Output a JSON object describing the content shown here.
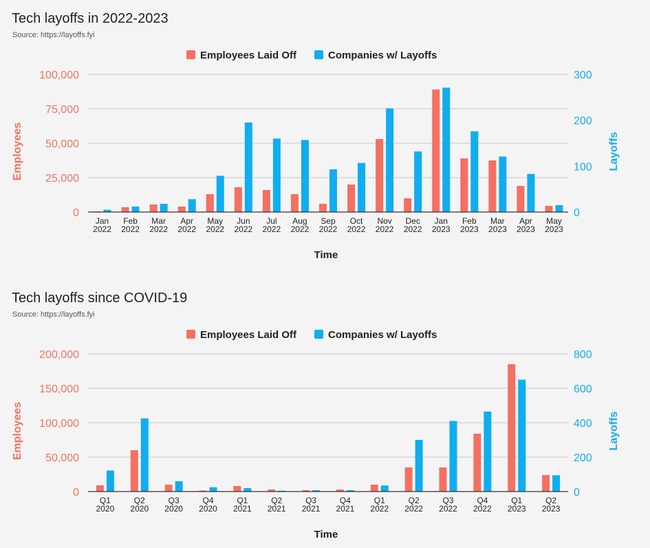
{
  "colors": {
    "employees": "#f47062",
    "companies": "#10adf0",
    "grid": "#c9c9c9",
    "axis": "#333333"
  },
  "chart_data": [
    {
      "type": "bar",
      "title": "Tech layoffs in 2022-2023",
      "subtitle": "Source: https://layoffs.fyi",
      "xlabel": "Time",
      "ylabel": "Employees",
      "y2label": "Layoffs",
      "legend_position": "top-center",
      "grid": true,
      "categories": [
        [
          "Jan",
          "2022"
        ],
        [
          "Feb",
          "2022"
        ],
        [
          "Mar",
          "2022"
        ],
        [
          "Apr",
          "2022"
        ],
        [
          "May",
          "2022"
        ],
        [
          "Jun",
          "2022"
        ],
        [
          "Jul",
          "2022"
        ],
        [
          "Aug",
          "2022"
        ],
        [
          "Sep",
          "2022"
        ],
        [
          "Oct",
          "2022"
        ],
        [
          "Nov",
          "2022"
        ],
        [
          "Dec",
          "2022"
        ],
        [
          "Jan",
          "2023"
        ],
        [
          "Feb",
          "2023"
        ],
        [
          "Mar",
          "2023"
        ],
        [
          "Apr",
          "2023"
        ],
        [
          "May",
          "2023"
        ]
      ],
      "ylim": [
        0,
        100000
      ],
      "y2lim": [
        0,
        300
      ],
      "yticks": [
        "0",
        "25,000",
        "50,000",
        "75,000",
        "100,000"
      ],
      "y2ticks": [
        "0",
        "100",
        "200",
        "300"
      ],
      "series": [
        {
          "name": "Employees Laid Off",
          "axis": "left",
          "values": [
            500,
            3500,
            5500,
            4000,
            13000,
            18000,
            16000,
            13000,
            6000,
            20000,
            53000,
            10000,
            89000,
            39000,
            37500,
            19000,
            4500
          ]
        },
        {
          "name": "Companies w/ Layoffs",
          "axis": "right",
          "values": [
            5,
            12,
            18,
            28,
            79,
            195,
            160,
            157,
            93,
            107,
            226,
            132,
            271,
            176,
            121,
            83,
            15
          ]
        }
      ]
    },
    {
      "type": "bar",
      "title": "Tech layoffs since COVID-19",
      "subtitle": "Source: https://layoffs.fyi",
      "xlabel": "Time",
      "ylabel": "Employees",
      "y2label": "Layoffs",
      "legend_position": "top-center",
      "grid": true,
      "categories": [
        [
          "Q1",
          "2020"
        ],
        [
          "Q2",
          "2020"
        ],
        [
          "Q3",
          "2020"
        ],
        [
          "Q4",
          "2020"
        ],
        [
          "Q1",
          "2021"
        ],
        [
          "Q2",
          "2021"
        ],
        [
          "Q3",
          "2021"
        ],
        [
          "Q4",
          "2021"
        ],
        [
          "Q1",
          "2022"
        ],
        [
          "Q2",
          "2022"
        ],
        [
          "Q3",
          "2022"
        ],
        [
          "Q4",
          "2022"
        ],
        [
          "Q1",
          "2023"
        ],
        [
          "Q2",
          "2023"
        ]
      ],
      "ylim": [
        0,
        200000
      ],
      "y2lim": [
        0,
        800
      ],
      "yticks": [
        "0",
        "50,000",
        "100,000",
        "150,000",
        "200,000"
      ],
      "y2ticks": [
        "0",
        "200",
        "400",
        "600",
        "800"
      ],
      "series": [
        {
          "name": "Employees Laid Off",
          "axis": "left",
          "values": [
            9000,
            60000,
            10000,
            1500,
            8000,
            3000,
            2000,
            3000,
            10000,
            35000,
            35000,
            84000,
            185000,
            24000
          ]
        },
        {
          "name": "Companies w/ Layoffs",
          "axis": "right",
          "values": [
            122,
            425,
            60,
            25,
            20,
            5,
            8,
            8,
            35,
            300,
            410,
            465,
            650,
            95
          ]
        }
      ]
    }
  ]
}
